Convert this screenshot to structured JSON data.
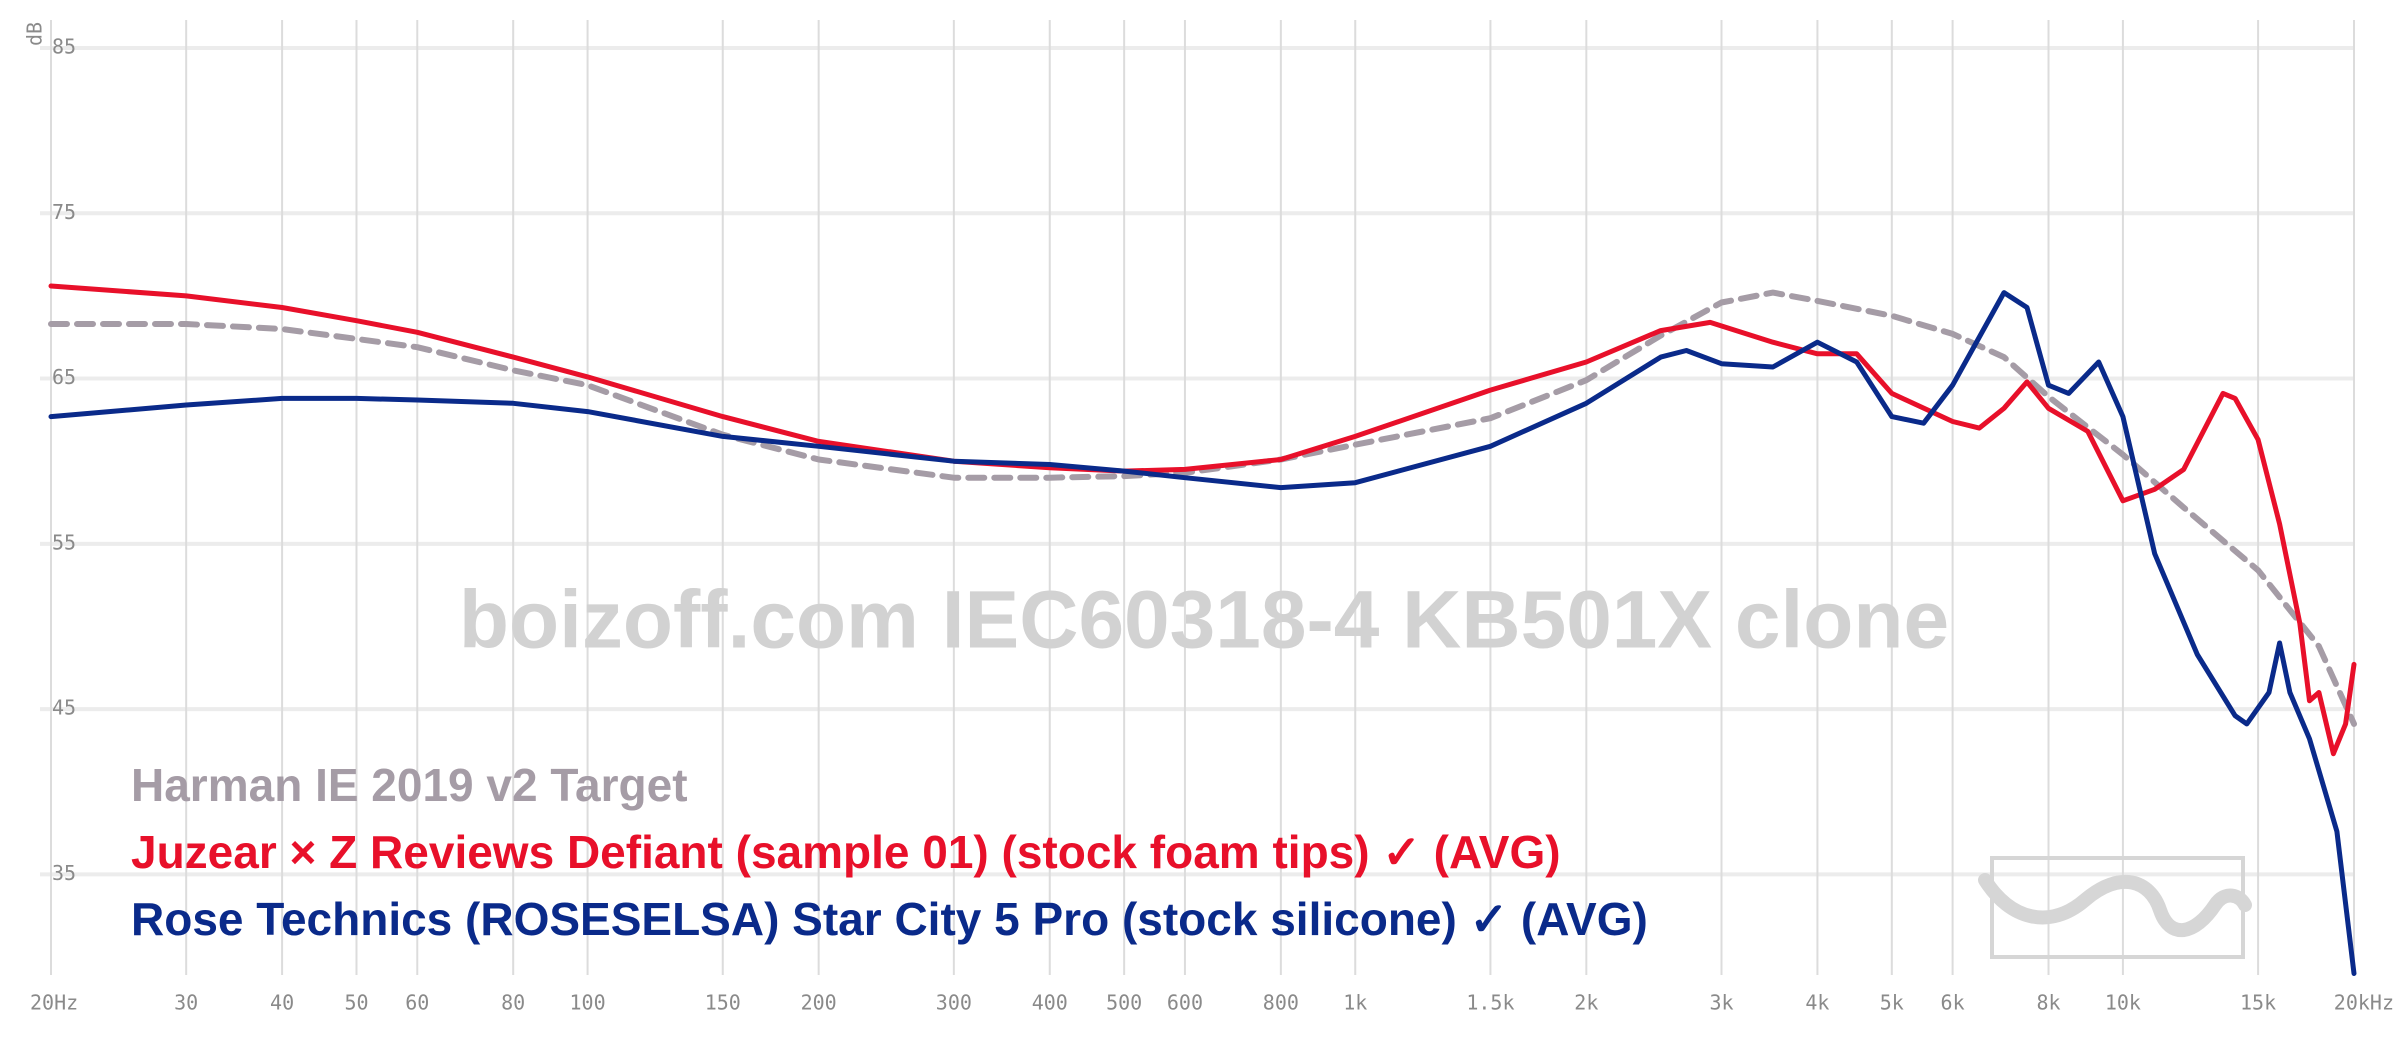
{
  "chart_data": {
    "type": "line",
    "y_label": "dB",
    "watermark": "boizoff.com IEC60318-4 KB501X clone",
    "xscale": "log",
    "grid": true,
    "xlim": [
      20,
      20000
    ],
    "ylim": [
      28,
      87
    ],
    "xticks": [
      {
        "value": 20,
        "label": "20Hz"
      },
      30,
      40,
      50,
      60,
      80,
      100,
      150,
      200,
      300,
      400,
      500,
      600,
      800,
      {
        "value": 1000,
        "label": "1k"
      },
      {
        "value": 1500,
        "label": "1.5k"
      },
      {
        "value": 2000,
        "label": "2k"
      },
      {
        "value": 3000,
        "label": "3k"
      },
      {
        "value": 4000,
        "label": "4k"
      },
      {
        "value": 5000,
        "label": "5k"
      },
      {
        "value": 6000,
        "label": "6k"
      },
      {
        "value": 8000,
        "label": "8k"
      },
      {
        "value": 10000,
        "label": "10k"
      },
      {
        "value": 15000,
        "label": "15k"
      },
      {
        "value": 20000,
        "label": "20kHz"
      }
    ],
    "yticks": [
      35,
      45,
      55,
      65,
      75,
      85
    ],
    "series": [
      {
        "name": "Harman IE 2019 v2 Target",
        "color": "#a59ca6",
        "dashed": true,
        "x": [
          20,
          30,
          40,
          50,
          60,
          80,
          100,
          150,
          200,
          300,
          400,
          500,
          600,
          800,
          1000,
          1500,
          2000,
          2500,
          3000,
          3500,
          4000,
          5000,
          6000,
          7000,
          8000,
          10000,
          12000,
          15000,
          18000,
          20000
        ],
        "values": [
          68.3,
          68.3,
          68,
          67.4,
          66.9,
          65.5,
          64.6,
          61.6,
          60.1,
          59,
          59,
          59.1,
          59.3,
          60.1,
          61,
          62.6,
          64.9,
          67.6,
          69.6,
          70.2,
          69.7,
          68.8,
          67.7,
          66.3,
          63.9,
          60.4,
          57.2,
          53.4,
          48.8,
          44.1
        ]
      },
      {
        "name": "Juzear × Z Reviews Defiant (sample 01) (stock foam tips) ✓ (AVG)",
        "color": "#e8102a",
        "dashed": false,
        "x": [
          20,
          30,
          40,
          50,
          60,
          80,
          100,
          150,
          200,
          300,
          400,
          500,
          600,
          800,
          1000,
          1500,
          2000,
          2500,
          2900,
          3500,
          4000,
          4500,
          5000,
          6000,
          6500,
          7000,
          7500,
          8000,
          9000,
          10000,
          11000,
          12000,
          13500,
          14000,
          15000,
          16000,
          17000,
          17500,
          18000,
          18800,
          19500,
          20000
        ],
        "values": [
          70.6,
          70,
          69.3,
          68.5,
          67.8,
          66.3,
          65.1,
          62.7,
          61.2,
          60,
          59.6,
          59.4,
          59.5,
          60.1,
          61.5,
          64.3,
          66,
          67.9,
          68.4,
          67.2,
          66.5,
          66.5,
          64.1,
          62.4,
          62,
          63.2,
          64.8,
          63.2,
          61.8,
          57.6,
          58.3,
          59.5,
          64.1,
          63.8,
          61.3,
          56.2,
          50.2,
          45.5,
          46,
          42.3,
          44.1,
          47.7
        ]
      },
      {
        "name": "Rose Technics (ROSESELSA) Star City 5 Pro (stock silicone) ✓ (AVG)",
        "color": "#0a2a8a",
        "dashed": false,
        "x": [
          20,
          30,
          40,
          50,
          60,
          80,
          100,
          150,
          200,
          300,
          400,
          500,
          600,
          800,
          1000,
          1500,
          2000,
          2500,
          2700,
          3000,
          3500,
          4000,
          4500,
          5000,
          5500,
          6000,
          7000,
          7500,
          8000,
          8500,
          9300,
          10000,
          11000,
          12500,
          14000,
          14500,
          15500,
          16000,
          16500,
          17500,
          19000,
          20000
        ],
        "values": [
          62.7,
          63.4,
          63.8,
          63.8,
          63.7,
          63.5,
          63,
          61.5,
          60.9,
          60,
          59.8,
          59.4,
          59,
          58.4,
          58.7,
          60.9,
          63.5,
          66.3,
          66.7,
          65.9,
          65.7,
          67.2,
          66,
          62.7,
          62.3,
          64.6,
          70.2,
          69.3,
          64.6,
          64.1,
          66,
          62.7,
          54.4,
          48.3,
          44.6,
          44.1,
          46,
          49,
          46,
          43.2,
          37.6,
          29
        ]
      }
    ]
  }
}
